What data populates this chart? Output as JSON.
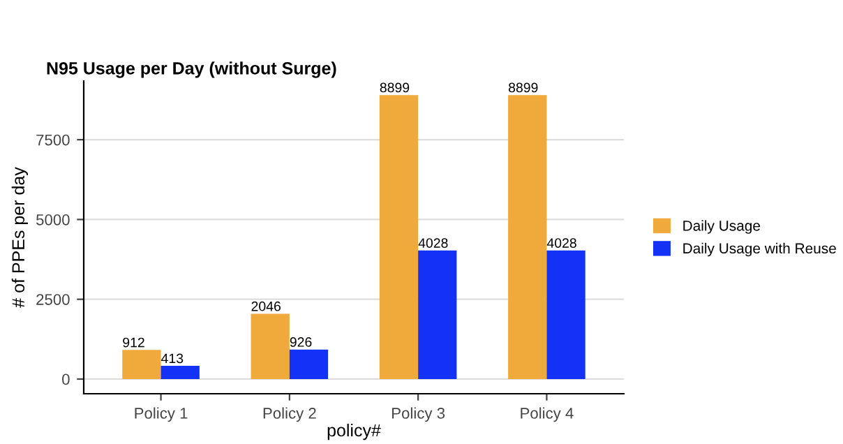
{
  "chart_data": {
    "type": "bar",
    "title": "N95 Usage per Day (without Surge)",
    "xlabel": "policy#",
    "ylabel": "# of PPEs per day",
    "categories": [
      "Policy 1",
      "Policy 2",
      "Policy 3",
      "Policy 4"
    ],
    "series": [
      {
        "name": "Daily Usage",
        "color": "#f0a93b",
        "values": [
          912,
          2046,
          8899,
          8899
        ]
      },
      {
        "name": "Daily Usage with Reuse",
        "color": "#1432f5",
        "values": [
          413,
          926,
          4028,
          4028
        ]
      }
    ],
    "ylim": [
      -460,
      9340
    ],
    "yticks": [
      0,
      2500,
      5000,
      7500
    ],
    "grid": "y",
    "legend": "right",
    "data_labels": true
  }
}
